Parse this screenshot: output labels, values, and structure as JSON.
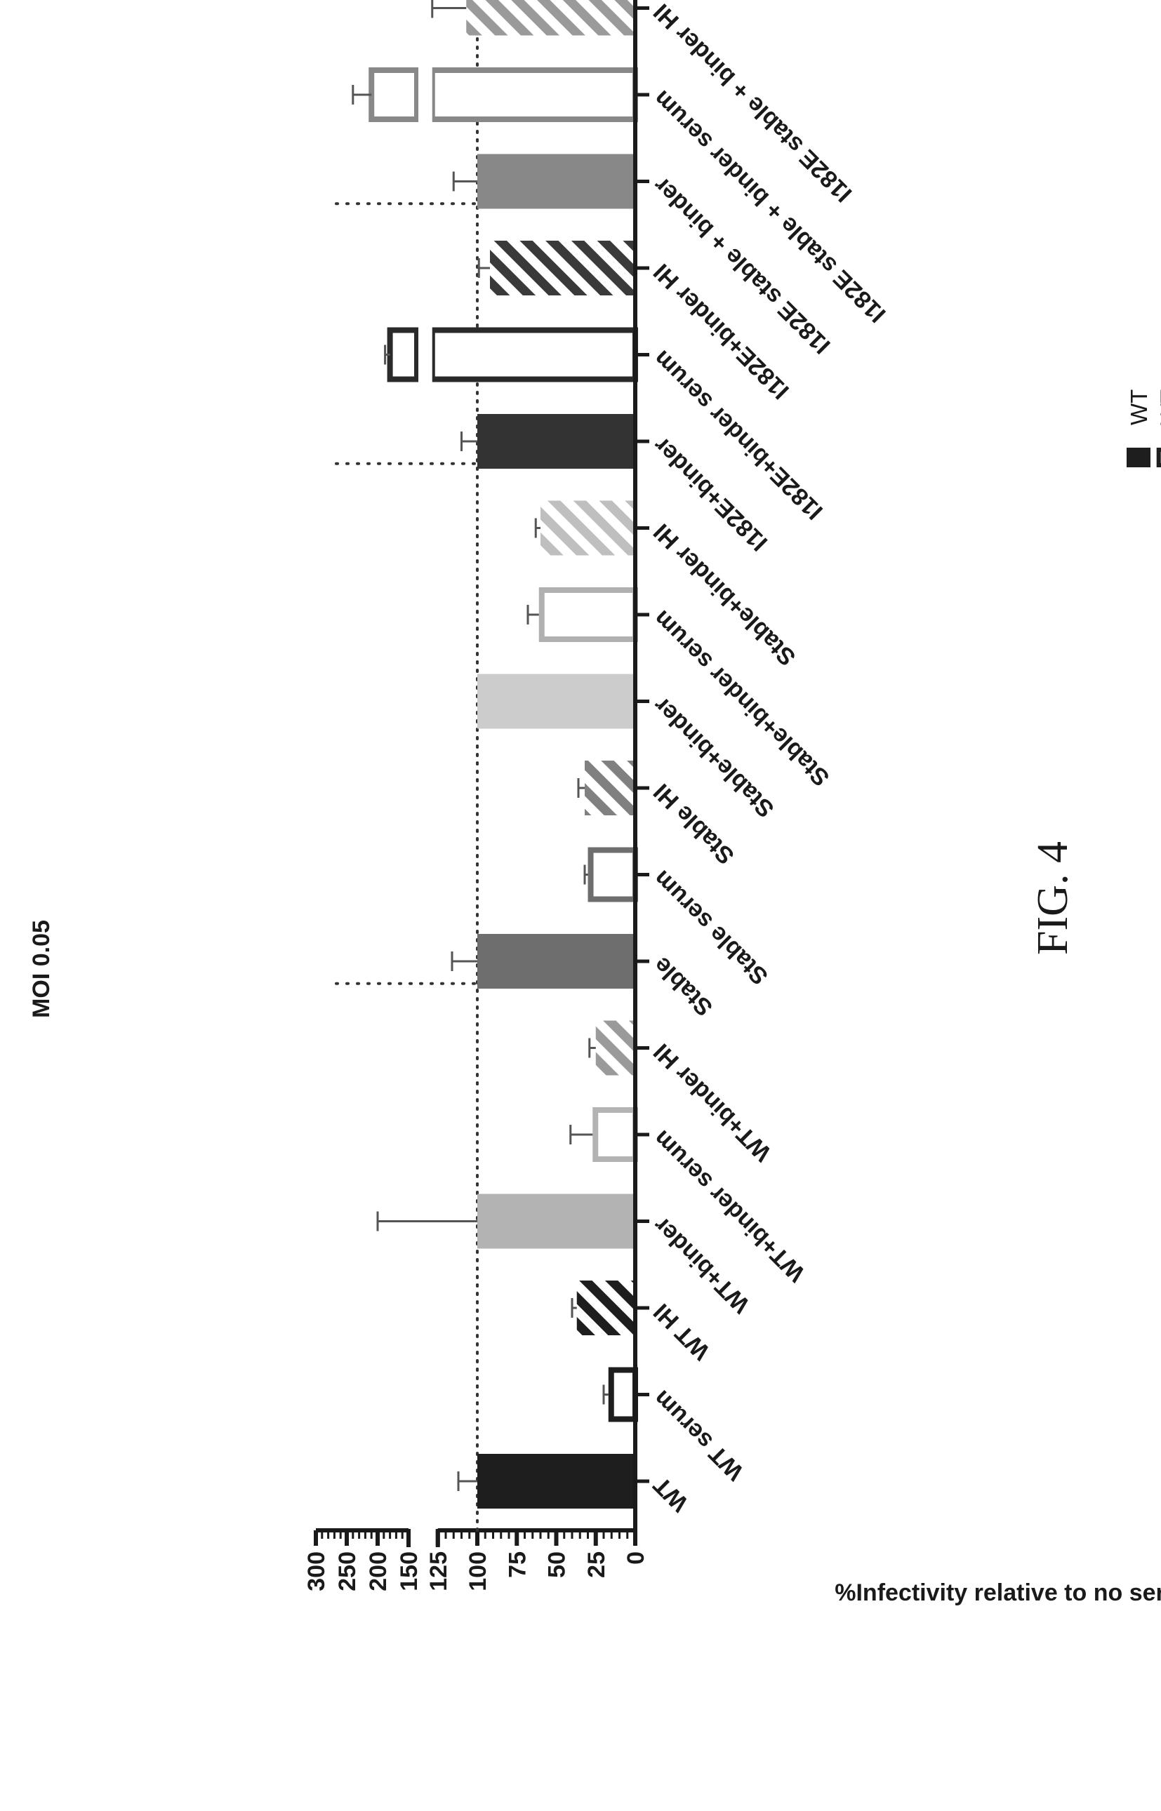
{
  "figure_label": "FIG. 4",
  "chart_data": {
    "type": "bar",
    "title": "MOI 0.05",
    "ylabel": "%Infectivity relative to no serum",
    "xlabel": "",
    "y_axis": {
      "segments": [
        {
          "range": [
            0,
            125
          ],
          "ticks": [
            0,
            25,
            50,
            75,
            100,
            125
          ]
        },
        {
          "range": [
            150,
            300
          ],
          "ticks": [
            150,
            200,
            250,
            300
          ]
        }
      ],
      "reference_line": 100
    },
    "categories": [
      "WT",
      "WT serum",
      "WT HI",
      "WT+binder",
      "WT+binder serum",
      "WT+binder HI",
      "Stable",
      "Stable serum",
      "Stable HI",
      "Stable+binder",
      "Stable+binder serum",
      "Stable+binder HI",
      "I182E+binder",
      "I182E+binder serum",
      "I182E+binder HI",
      "I182E stable + binder",
      "I182E stable + binder serum",
      "I182E stable + binder HI"
    ],
    "values": [
      100,
      17,
      37,
      100,
      27,
      25,
      100,
      30,
      32,
      100,
      61,
      60,
      100,
      180,
      92,
      100,
      210,
      107
    ],
    "errors": [
      12,
      3,
      3,
      100,
      14,
      4,
      16,
      2,
      4,
      0,
      7,
      3,
      10,
      8,
      7,
      15,
      30,
      40
    ],
    "styles": [
      "solid",
      "open",
      "hatch",
      "solid",
      "open",
      "hatch",
      "solid",
      "open",
      "hatch",
      "solid",
      "open",
      "hatch",
      "solid",
      "open",
      "hatch",
      "solid",
      "open",
      "hatch"
    ],
    "colors": [
      "#1e1e1e",
      "#1e1e1e",
      "#1e1e1e",
      "#b3b3b3",
      "#b3b3b3",
      "#9a9a9a",
      "#6e6e6e",
      "#6e6e6e",
      "#808080",
      "#cccccc",
      "#b0b0b0",
      "#bfbfbf",
      "#333333",
      "#2a2a2a",
      "#3a3a3a",
      "#888888",
      "#888888",
      "#9a9a9a"
    ],
    "group_separators_after": [
      5,
      11
    ],
    "legend": [
      "WT",
      "WT serum",
      "WT HI",
      "WT+binder",
      "WT+binder serum",
      "WT+binder HI",
      "Stable",
      "Stable serum",
      "Stable HI",
      "Stable+binder",
      "Stable+binder serum",
      "Stable+binder HI",
      "I182E+binder",
      "I182E+binder serum",
      "I182E+binder HI",
      "I182E stable + binder",
      "I182E stable + binder serum",
      "I182E stable + binder HI"
    ],
    "legend_placement": "right",
    "grid": false,
    "orientation": "rotated 90 degrees counter-clockwise on page"
  }
}
